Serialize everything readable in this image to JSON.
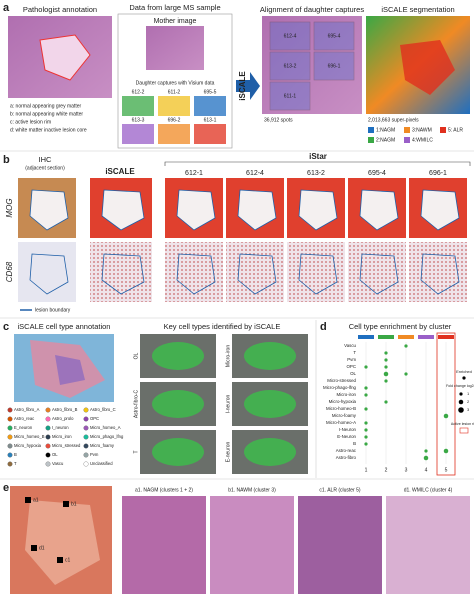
{
  "panel_a": {
    "label": "a",
    "pathologist_title": "Pathologist annotation",
    "annotation_legend": [
      "a: normal appearing grey matter",
      "b: normal appearing white matter",
      "c: active lesion rim",
      "d: white matter inactive lesion core"
    ],
    "data_title": "Data from large MS sample",
    "mother": "Mother image",
    "daughters_title": "Daughter captures with Visium data",
    "daughters": [
      "612-2",
      "611-2",
      "695-5",
      "613-3",
      "696-2",
      "613-1"
    ],
    "method": "iSCALE",
    "alignment_title": "Alignment of daughter captures",
    "alignment_tiles": [
      "612-4",
      "695-4",
      "613-2",
      "696-1",
      "611-1"
    ],
    "spots": "36,912 spots",
    "segmentation_title": "iSCALE segmentation",
    "super_pixels": "2,013,663 super-pixels",
    "clusters": [
      {
        "label": "1:NAGM",
        "color": "#1f6fc0"
      },
      {
        "label": "3:NAWM",
        "color": "#f08a24"
      },
      {
        "label": "5: ALR",
        "color": "#e0301e"
      },
      {
        "label": "2:NAGM",
        "color": "#3aa845"
      },
      {
        "label": "4:WMILC",
        "color": "#9a5fc8"
      }
    ]
  },
  "panel_b": {
    "label": "b",
    "ihc": "IHC",
    "ihc_sub": "(adjacent section)",
    "iscale": "iSCALE",
    "istar": "iStar",
    "samples": [
      "612-1",
      "612-4",
      "613-2",
      "695-4",
      "696-1"
    ],
    "rows": [
      "MOG",
      "CD68"
    ],
    "lesion": "lesion boundary"
  },
  "panel_c": {
    "label": "c",
    "annotation_title": "iSCALE cell type annotation",
    "key_title": "Key cell types identified by iSCALE",
    "key_types": [
      "OL",
      "Astro-fibro-C",
      "T",
      "Micro-iron",
      "I-neuron",
      "E-neuron"
    ],
    "legend": [
      {
        "name": "Astro_fibro_A",
        "color": "#c0392b"
      },
      {
        "name": "Astro_fibro_B",
        "color": "#e67e22"
      },
      {
        "name": "Astro_fibro_C",
        "color": "#f1c40f"
      },
      {
        "name": "Astro_reac",
        "color": "#d35400"
      },
      {
        "name": "Astro_prolo",
        "color": "#ff69b4"
      },
      {
        "name": "OPC",
        "color": "#8e44ad"
      },
      {
        "name": "E_neuron",
        "color": "#27ae60"
      },
      {
        "name": "I_neuron",
        "color": "#16a085"
      },
      {
        "name": "Micro_homeo_A",
        "color": "#9b59b6"
      },
      {
        "name": "Micro_homeo_B",
        "color": "#f39c12"
      },
      {
        "name": "Micro_iron",
        "color": "#2c3e50"
      },
      {
        "name": "Micro_phago_lfng",
        "color": "#1abc9c"
      },
      {
        "name": "Micro_hypoxia",
        "color": "#7f8c8d"
      },
      {
        "name": "Micro_stressed",
        "color": "#e74c3c"
      },
      {
        "name": "Micro_foamy",
        "color": "#34495e"
      },
      {
        "name": "B",
        "color": "#2980b9"
      },
      {
        "name": "OL",
        "color": "#000000"
      },
      {
        "name": "Pvm",
        "color": "#95a5a6"
      },
      {
        "name": "T",
        "color": "#8e6b3e"
      },
      {
        "name": "Vascu",
        "color": "#bdc3c7"
      },
      {
        "name": "Unclassified",
        "color": "#ffffff"
      }
    ]
  },
  "panel_d": {
    "label": "d",
    "title": "Cell type enrichment by cluster",
    "cluster_colors": [
      "#1f6fc0",
      "#3aa845",
      "#f08a24",
      "#9a5fc8",
      "#e0301e"
    ],
    "clusters": [
      "1",
      "2",
      "3",
      "4",
      "5"
    ],
    "rows": [
      {
        "name": "Vascu",
        "values": [
          null,
          null,
          1,
          null,
          null
        ]
      },
      {
        "name": "T",
        "values": [
          null,
          1,
          null,
          null,
          null
        ]
      },
      {
        "name": "Pvm",
        "values": [
          null,
          1,
          null,
          null,
          null
        ]
      },
      {
        "name": "OPC",
        "values": [
          1,
          1,
          null,
          null,
          null
        ]
      },
      {
        "name": "OL",
        "values": [
          null,
          2,
          1,
          null,
          null
        ]
      },
      {
        "name": "Micro-stressed",
        "values": [
          null,
          1,
          null,
          null,
          null
        ]
      },
      {
        "name": "Micro-phago-lfng",
        "values": [
          1,
          null,
          null,
          null,
          null
        ]
      },
      {
        "name": "Micro-iron",
        "values": [
          1,
          null,
          null,
          null,
          null
        ]
      },
      {
        "name": "Micro-hypoxia",
        "values": [
          null,
          1,
          null,
          null,
          null
        ]
      },
      {
        "name": "Micro-homeo-B",
        "values": [
          1,
          null,
          null,
          null,
          null
        ]
      },
      {
        "name": "Micro-foamy",
        "values": [
          null,
          null,
          null,
          null,
          2
        ]
      },
      {
        "name": "Micro-homeo-A",
        "values": [
          1,
          null,
          null,
          null,
          null
        ]
      },
      {
        "name": "I-Neuron",
        "values": [
          1,
          null,
          null,
          null,
          null
        ]
      },
      {
        "name": "E-Neuron",
        "values": [
          1,
          null,
          null,
          null,
          null
        ]
      },
      {
        "name": "B",
        "values": [
          1,
          null,
          null,
          null,
          null
        ]
      },
      {
        "name": "Astro-reac",
        "values": [
          null,
          null,
          null,
          1,
          2
        ]
      },
      {
        "name": "Astro-fibro",
        "values": [
          null,
          null,
          null,
          2,
          null
        ]
      }
    ],
    "legend": {
      "enriched": "Enriched",
      "fold_change": "Fold change log2(x+1)",
      "sizes": [
        1,
        2,
        3
      ],
      "rim": "Active lesion rim"
    }
  },
  "panel_e": {
    "label": "e",
    "markers": [
      "a1",
      "b1",
      "c1",
      "d1"
    ],
    "titles": [
      "a1. NAGM (clusters 1 + 2)",
      "b1. NAWM (cluster 3)",
      "c1. ALR (cluster 5)",
      "d1. WMILC (cluster 4)"
    ]
  }
}
